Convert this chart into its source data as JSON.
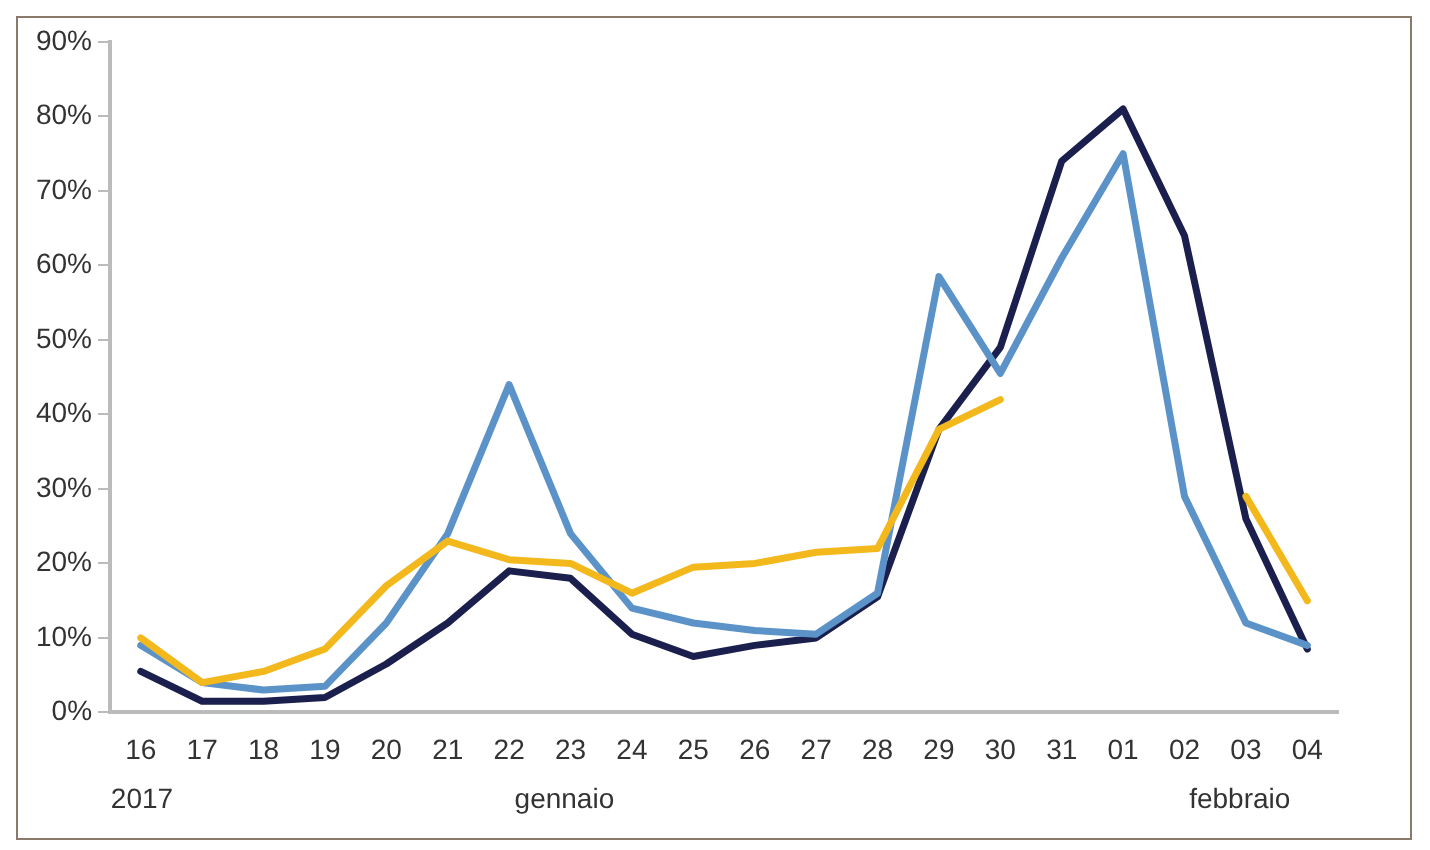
{
  "chart_data": {
    "type": "line",
    "categories": [
      "16",
      "17",
      "18",
      "19",
      "20",
      "21",
      "22",
      "23",
      "24",
      "25",
      "26",
      "27",
      "28",
      "29",
      "30",
      "31",
      "01",
      "02",
      "03",
      "04"
    ],
    "series": [
      {
        "color": "#f2b81c",
        "values": [
          10,
          4,
          5.5,
          8.5,
          17,
          23,
          20.5,
          20,
          16,
          19.5,
          20,
          21.5,
          22,
          38,
          42,
          null,
          null,
          null,
          29,
          15
        ]
      },
      {
        "color": "#5b93c9",
        "values": [
          9,
          4,
          3,
          3.5,
          12,
          24,
          44,
          24,
          14,
          12,
          11,
          10.5,
          16,
          58.5,
          45.5,
          61,
          75,
          29,
          12,
          9
        ]
      },
      {
        "color": "#1b1f4d",
        "values": [
          5.5,
          1.5,
          1.5,
          2,
          6.5,
          12,
          19,
          18,
          10.5,
          7.5,
          9,
          10,
          15.5,
          38,
          49,
          74,
          81,
          64,
          26,
          8.5
        ]
      }
    ],
    "ylim": [
      0,
      90
    ],
    "yticks": [
      {
        "value": 0,
        "label": "0%"
      },
      {
        "value": 10,
        "label": "10%"
      },
      {
        "value": 20,
        "label": "20%"
      },
      {
        "value": 30,
        "label": "30%"
      },
      {
        "value": 40,
        "label": "40%"
      },
      {
        "value": 50,
        "label": "50%"
      },
      {
        "value": 60,
        "label": "60%"
      },
      {
        "value": 70,
        "label": "70%"
      },
      {
        "value": 80,
        "label": "80%"
      },
      {
        "value": 90,
        "label": "90%"
      }
    ],
    "annotations": [
      "2017",
      "gennaio",
      "febbraio"
    ],
    "grid": false,
    "legend": false,
    "marker": "none",
    "line_style": "solid"
  }
}
